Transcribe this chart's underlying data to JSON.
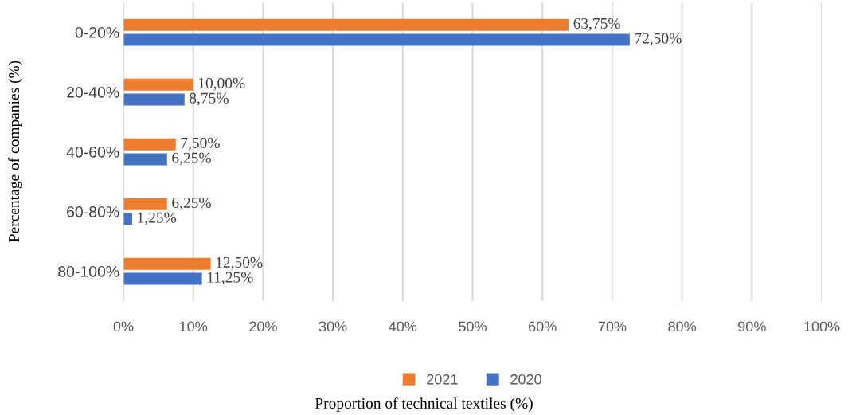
{
  "chart_data": {
    "type": "bar",
    "orientation": "horizontal",
    "xlabel": "Proportion of technical textiles (%)",
    "ylabel": "Percentage of companies (%)",
    "categories": [
      "0-20%",
      "20-40%",
      "40-60%",
      "60-80%",
      "80-100%"
    ],
    "series": [
      {
        "name": "2021",
        "color": "#ed7d31",
        "values": [
          63.75,
          10.0,
          7.5,
          6.25,
          12.5
        ],
        "value_labels": [
          "63,75%",
          "10,00%",
          "7,50%",
          "6,25%",
          "12,50%"
        ]
      },
      {
        "name": "2020",
        "color": "#4472c4",
        "values": [
          72.5,
          8.75,
          6.25,
          1.25,
          11.25
        ],
        "value_labels": [
          "72,50%",
          "8,75%",
          "6,25%",
          "1,25%",
          "11,25%"
        ]
      }
    ],
    "xlim": [
      0,
      100
    ],
    "xticks": [
      {
        "value": 0,
        "label": "0%"
      },
      {
        "value": 10,
        "label": "10%"
      },
      {
        "value": 20,
        "label": "20%"
      },
      {
        "value": 30,
        "label": "30%"
      },
      {
        "value": 40,
        "label": "40%"
      },
      {
        "value": 50,
        "label": "50%"
      },
      {
        "value": 60,
        "label": "60%"
      },
      {
        "value": 70,
        "label": "70%"
      },
      {
        "value": 80,
        "label": "80%"
      },
      {
        "value": 90,
        "label": "90%"
      },
      {
        "value": 100,
        "label": "100%"
      }
    ],
    "grid": "x",
    "legend": "bottom"
  }
}
